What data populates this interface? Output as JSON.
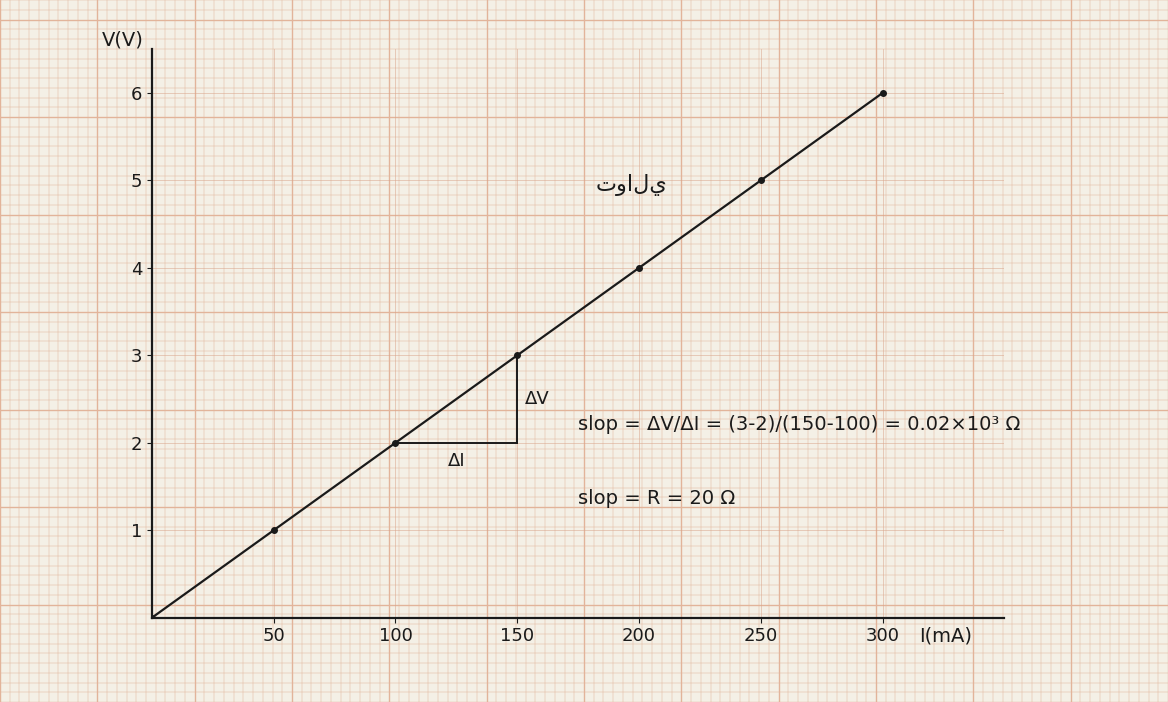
{
  "chart_data": {
    "type": "line",
    "x_label": "I(mA)",
    "y_label": "V(V)",
    "x": [
      0,
      50,
      100,
      150,
      200,
      250,
      300
    ],
    "values": [
      0,
      1,
      2,
      3,
      4,
      5,
      6
    ],
    "color": "#1a1a1a",
    "marker": "o",
    "line_style": "solid",
    "xlim": [
      0,
      350
    ],
    "ylim": [
      0,
      6.5
    ],
    "xticks": [
      50,
      100,
      150,
      200,
      250,
      300
    ],
    "yticks": [
      1,
      2,
      3,
      4,
      5,
      6
    ],
    "grid": true,
    "slope_triangle": {
      "x": [
        100,
        150
      ],
      "y": [
        2,
        3
      ],
      "dx_label": "ΔI",
      "dy_label": "ΔV"
    },
    "annotations": [
      "توالي",
      "slop = ΔV/ΔI = (3-2)/(150-100) = 0.02×10³ Ω",
      "slop = R = 20 Ω"
    ]
  }
}
